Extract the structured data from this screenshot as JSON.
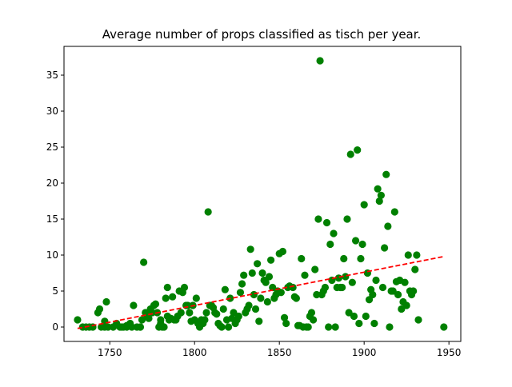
{
  "chart_data": {
    "type": "scatter",
    "title": "Average number of props classified as tisch per year.",
    "xlabel": "",
    "ylabel": "",
    "xlim": [
      1723,
      1957
    ],
    "ylim": [
      -2,
      39
    ],
    "x_ticks": [
      1750,
      1800,
      1850,
      1900,
      1950
    ],
    "y_ticks": [
      0,
      5,
      10,
      15,
      20,
      25,
      30,
      35
    ],
    "grid": false,
    "legend": "none",
    "colors": {
      "points": "#008000",
      "trend": "#ff0000"
    },
    "series": [
      {
        "kind": "points",
        "x": [
          1731,
          1734,
          1736,
          1738,
          1740,
          1743,
          1744,
          1745,
          1747,
          1747,
          1748,
          1749,
          1752,
          1754,
          1756,
          1757,
          1758,
          1760,
          1760,
          1762,
          1763,
          1764,
          1766,
          1768,
          1768,
          1769,
          1770,
          1771,
          1772,
          1773,
          1774,
          1775,
          1776,
          1777,
          1778,
          1779,
          1780,
          1780,
          1781,
          1782,
          1783,
          1784,
          1784,
          1785,
          1786,
          1787,
          1788,
          1789,
          1790,
          1791,
          1792,
          1793,
          1794,
          1795,
          1796,
          1797,
          1798,
          1799,
          1800,
          1801,
          1802,
          1803,
          1804,
          1805,
          1806,
          1807,
          1808,
          1809,
          1810,
          1811,
          1812,
          1813,
          1814,
          1815,
          1816,
          1817,
          1818,
          1819,
          1820,
          1821,
          1822,
          1823,
          1824,
          1825,
          1826,
          1827,
          1828,
          1829,
          1830,
          1831,
          1832,
          1833,
          1834,
          1835,
          1836,
          1837,
          1838,
          1839,
          1840,
          1841,
          1842,
          1843,
          1844,
          1845,
          1846,
          1847,
          1848,
          1849,
          1850,
          1851,
          1852,
          1853,
          1854,
          1855,
          1856,
          1858,
          1859,
          1860,
          1861,
          1862,
          1863,
          1864,
          1865,
          1866,
          1867,
          1868,
          1869,
          1870,
          1871,
          1872,
          1873,
          1874,
          1875,
          1876,
          1877,
          1878,
          1879,
          1880,
          1881,
          1882,
          1883,
          1884,
          1885,
          1886,
          1887,
          1888,
          1889,
          1890,
          1891,
          1892,
          1893,
          1894,
          1895,
          1896,
          1897,
          1898,
          1899,
          1900,
          1901,
          1902,
          1903,
          1904,
          1905,
          1906,
          1907,
          1908,
          1909,
          1910,
          1911,
          1912,
          1913,
          1914,
          1915,
          1916,
          1917,
          1918,
          1919,
          1920,
          1921,
          1922,
          1923,
          1924,
          1925,
          1926,
          1927,
          1928,
          1929,
          1930,
          1931,
          1932,
          1947
        ],
        "y": [
          1,
          0,
          0,
          0,
          0,
          2,
          2.5,
          0,
          0.8,
          0,
          3.5,
          0,
          0,
          0.5,
          0,
          0,
          0,
          0.2,
          0,
          0.5,
          0,
          3,
          0,
          0,
          0,
          1,
          9,
          2,
          1.5,
          1.2,
          2.5,
          2,
          3,
          3.2,
          2,
          0,
          0.5,
          1,
          0,
          0,
          4,
          1.5,
          5.5,
          1,
          1.2,
          4.2,
          1,
          1,
          1.5,
          5,
          2,
          4.8,
          5.5,
          3,
          3,
          2,
          0.8,
          3,
          1,
          4,
          0.5,
          0,
          1,
          0.5,
          1,
          2,
          16,
          3,
          3,
          2.7,
          2,
          1.8,
          0.5,
          0.2,
          0,
          2.5,
          5.2,
          1,
          0,
          4,
          1.2,
          2,
          0.5,
          1,
          1.5,
          4.8,
          6,
          7.2,
          2,
          2.5,
          3,
          10.8,
          7.5,
          4.5,
          2.5,
          8.8,
          0.8,
          4,
          7.5,
          6.5,
          6.2,
          3.5,
          7,
          9.3,
          5.5,
          4,
          4.5,
          5,
          10.2,
          4.8,
          10.5,
          1.3,
          0.5,
          5.5,
          5.7,
          5.5,
          4.2,
          4,
          0.2,
          0.2,
          9.5,
          0,
          7.2,
          0,
          0,
          1.5,
          2,
          1,
          8,
          4.5,
          15,
          37,
          4.5,
          5,
          5.5,
          14.5,
          0,
          11.5,
          6.5,
          13,
          0,
          5.5,
          6.8,
          5.5,
          5.5,
          9.5,
          7,
          15,
          2,
          24,
          6.2,
          1.5,
          12,
          24.6,
          0.5,
          9.5,
          11.5,
          17,
          1.5,
          7.5,
          3.8,
          5.2,
          4.5,
          0.5,
          6.5,
          19.2,
          17.5,
          18.3,
          5.5,
          11,
          21.2,
          14,
          0,
          5,
          5,
          16,
          6.3,
          4.5,
          6.5,
          2.5,
          3.5,
          6.2,
          3,
          10,
          5,
          4.5,
          5,
          8,
          10,
          1,
          0
        ]
      },
      {
        "kind": "trend",
        "x": [
          1731,
          1947
        ],
        "y": [
          -0.2,
          9.8
        ]
      }
    ]
  }
}
